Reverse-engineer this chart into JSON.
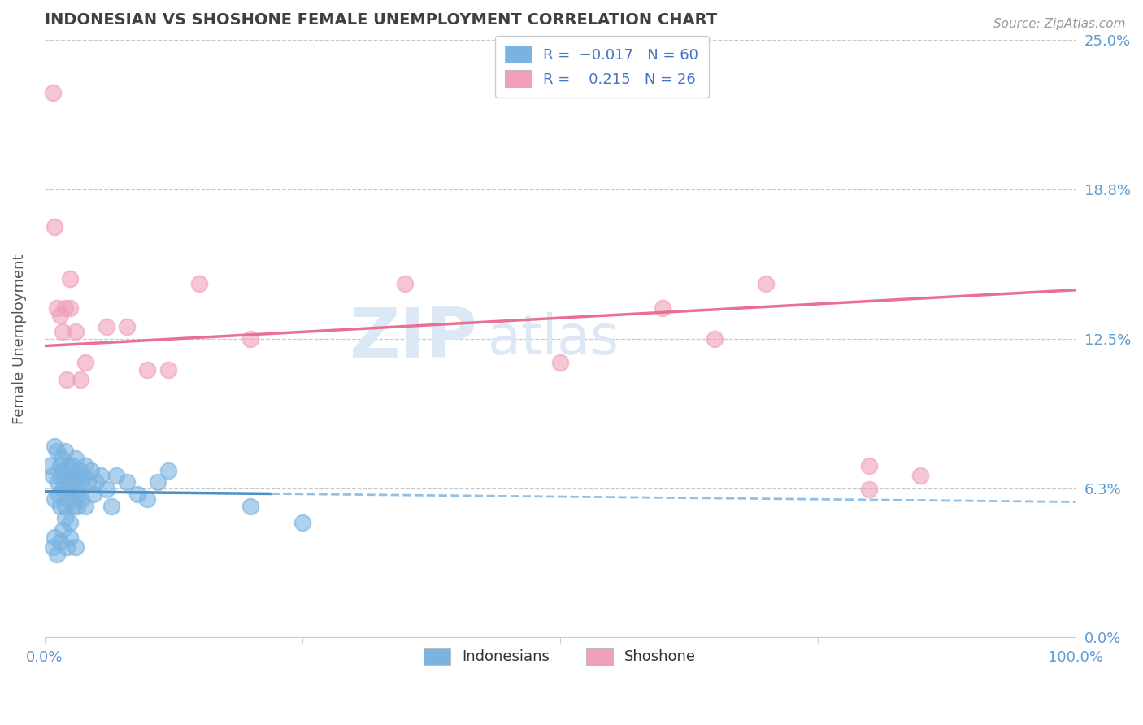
{
  "title": "INDONESIAN VS SHOSHONE FEMALE UNEMPLOYMENT CORRELATION CHART",
  "source_text": "Source: ZipAtlas.com",
  "ylabel": "Female Unemployment",
  "xlim": [
    0.0,
    1.0
  ],
  "ylim": [
    0.0,
    0.25
  ],
  "yticks": [
    0.0,
    0.0625,
    0.125,
    0.1875,
    0.25
  ],
  "ytick_labels": [
    "0.0%",
    "6.3%",
    "12.5%",
    "18.8%",
    "25.0%"
  ],
  "xtick_positions": [
    0.0,
    0.25,
    0.5,
    0.75,
    1.0
  ],
  "xtick_labels": [
    "0.0%",
    "",
    "",
    "",
    "100.0%"
  ],
  "indonesian_R": -0.017,
  "indonesian_N": 60,
  "shoshone_R": 0.215,
  "shoshone_N": 26,
  "blue_dot": "#7ab3e0",
  "pink_dot": "#f0a0b8",
  "blue_line_solid": "#4a90c8",
  "blue_line_dash": "#90c0e8",
  "pink_line": "#e87090",
  "title_color": "#404040",
  "ylabel_color": "#555555",
  "tick_color": "#5b9bd5",
  "grid_color": "#c8c8c8",
  "watermark_color": "#dce8f5",
  "legend_num_color": "#4472c4",
  "legend_text_color": "#333333",
  "indo_x": [
    0.005,
    0.008,
    0.01,
    0.01,
    0.012,
    0.013,
    0.014,
    0.015,
    0.015,
    0.016,
    0.017,
    0.018,
    0.018,
    0.02,
    0.02,
    0.02,
    0.02,
    0.022,
    0.023,
    0.024,
    0.025,
    0.025,
    0.026,
    0.027,
    0.028,
    0.028,
    0.03,
    0.03,
    0.031,
    0.032,
    0.033,
    0.034,
    0.035,
    0.036,
    0.038,
    0.04,
    0.04,
    0.042,
    0.045,
    0.048,
    0.05,
    0.055,
    0.06,
    0.065,
    0.07,
    0.08,
    0.09,
    0.1,
    0.11,
    0.12,
    0.008,
    0.01,
    0.012,
    0.015,
    0.018,
    0.022,
    0.025,
    0.03,
    0.2,
    0.25
  ],
  "indo_y": [
    0.072,
    0.068,
    0.058,
    0.08,
    0.078,
    0.065,
    0.06,
    0.055,
    0.072,
    0.068,
    0.075,
    0.07,
    0.062,
    0.068,
    0.055,
    0.05,
    0.078,
    0.065,
    0.072,
    0.058,
    0.062,
    0.048,
    0.065,
    0.072,
    0.068,
    0.055,
    0.06,
    0.075,
    0.068,
    0.055,
    0.062,
    0.07,
    0.065,
    0.058,
    0.068,
    0.072,
    0.055,
    0.065,
    0.07,
    0.06,
    0.065,
    0.068,
    0.062,
    0.055,
    0.068,
    0.065,
    0.06,
    0.058,
    0.065,
    0.07,
    0.038,
    0.042,
    0.035,
    0.04,
    0.045,
    0.038,
    0.042,
    0.038,
    0.055,
    0.048
  ],
  "shosh_x": [
    0.008,
    0.01,
    0.012,
    0.015,
    0.018,
    0.02,
    0.022,
    0.025,
    0.025,
    0.03,
    0.035,
    0.04,
    0.06,
    0.08,
    0.1,
    0.12,
    0.15,
    0.2,
    0.35,
    0.5,
    0.6,
    0.65,
    0.7,
    0.8,
    0.8,
    0.85
  ],
  "shosh_y": [
    0.228,
    0.172,
    0.138,
    0.135,
    0.128,
    0.138,
    0.108,
    0.15,
    0.138,
    0.128,
    0.108,
    0.115,
    0.13,
    0.13,
    0.112,
    0.112,
    0.148,
    0.125,
    0.148,
    0.115,
    0.138,
    0.125,
    0.148,
    0.062,
    0.072,
    0.068
  ],
  "shosh_line_x0": 0.0,
  "shosh_line_y0": 0.098,
  "shosh_line_x1": 1.0,
  "shosh_line_y1": 0.142,
  "indo_line_solid_x0": 0.0,
  "indo_line_solid_y0": 0.075,
  "indo_line_solid_x1": 0.25,
  "indo_line_solid_y1": 0.07,
  "indo_line_dash_x0": 0.25,
  "indo_line_dash_y0": 0.07,
  "indo_line_dash_x1": 1.0,
  "indo_line_dash_y1": 0.063
}
